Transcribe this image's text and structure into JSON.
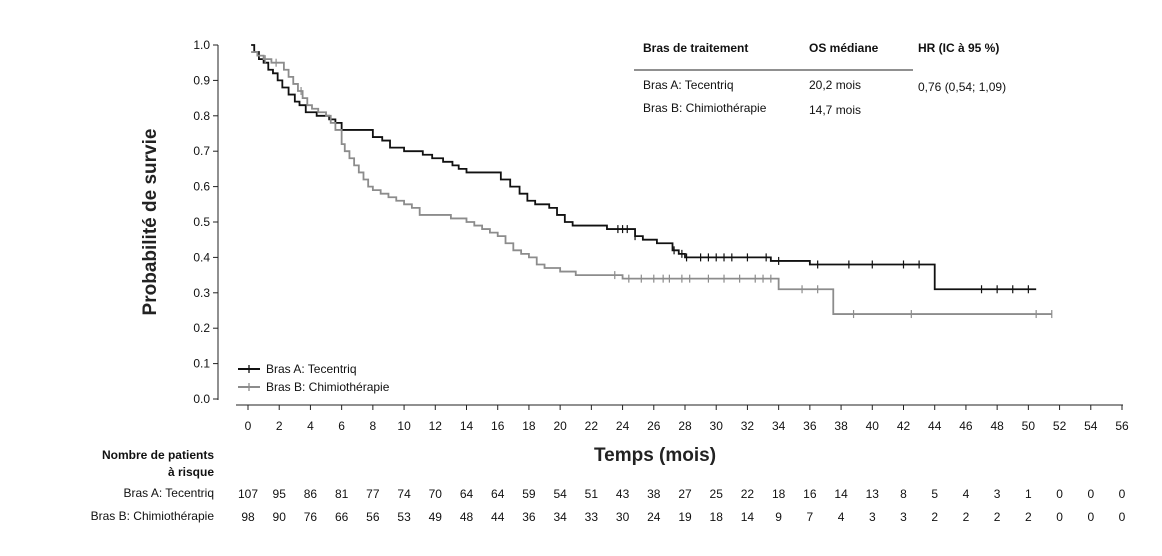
{
  "chart_data": {
    "type": "line",
    "title": "",
    "xlabel": "Temps (mois)",
    "ylabel": "Probabilité de survie",
    "xlim": [
      0,
      56
    ],
    "ylim": [
      0,
      1
    ],
    "x_ticks": [
      "0",
      "2",
      "4",
      "6",
      "8",
      "10",
      "12",
      "14",
      "16",
      "18",
      "20",
      "22",
      "24",
      "26",
      "28",
      "30",
      "32",
      "34",
      "36",
      "38",
      "40",
      "42",
      "44",
      "46",
      "48",
      "50",
      "52",
      "54",
      "56"
    ],
    "y_ticks": [
      "0.0",
      "0.1",
      "0.2",
      "0.3",
      "0.4",
      "0.5",
      "0.6",
      "0.7",
      "0.8",
      "0.9",
      "1.0"
    ],
    "legend": {
      "placement": "bottom-left"
    },
    "series": [
      {
        "name": "Bras A: Tecentriq",
        "color": "#111111",
        "x": [
          0.2,
          0.4,
          0.7,
          1.0,
          1.3,
          1.6,
          1.9,
          2.2,
          2.6,
          3.0,
          3.3,
          3.7,
          4.4,
          5.2,
          5.6,
          6.0,
          8.0,
          8.6,
          9.1,
          10.0,
          11.2,
          11.8,
          12.5,
          13.1,
          13.5,
          14.0,
          16.2,
          16.8,
          17.4,
          17.9,
          18.4,
          19.3,
          19.8,
          20.3,
          20.8,
          23.0,
          24.8,
          25.3,
          26.2,
          27.2,
          27.6,
          28.0,
          33.5,
          36.0,
          44.0,
          50.5
        ],
        "y": [
          1.0,
          0.98,
          0.96,
          0.95,
          0.93,
          0.92,
          0.9,
          0.88,
          0.86,
          0.84,
          0.83,
          0.81,
          0.8,
          0.79,
          0.78,
          0.76,
          0.74,
          0.73,
          0.71,
          0.7,
          0.69,
          0.68,
          0.67,
          0.66,
          0.65,
          0.64,
          0.62,
          0.6,
          0.58,
          0.56,
          0.55,
          0.54,
          0.52,
          0.5,
          0.49,
          0.48,
          0.46,
          0.45,
          0.44,
          0.42,
          0.41,
          0.4,
          0.39,
          0.38,
          0.31,
          0.31
        ],
        "censor_x": [
          23.7,
          24.0,
          24.3,
          24.8,
          27.3,
          27.8,
          28.1,
          29.0,
          29.5,
          30.0,
          30.5,
          31.0,
          32.0,
          33.2,
          34.0,
          36.5,
          38.5,
          40.0,
          42.0,
          43.0,
          47.0,
          48.0,
          49.0,
          50.0
        ]
      },
      {
        "name": "Bras B: Chimiothérapie",
        "color": "#8c8c8c",
        "x": [
          0.2,
          0.6,
          1.0,
          1.5,
          2.3,
          2.6,
          2.9,
          3.2,
          3.5,
          3.8,
          4.1,
          4.5,
          5.0,
          5.3,
          5.6,
          6.0,
          6.2,
          6.5,
          6.8,
          7.1,
          7.4,
          7.7,
          8.0,
          8.5,
          9.0,
          9.5,
          10.0,
          10.5,
          11.0,
          12.0,
          13.0,
          14.0,
          14.5,
          15.0,
          15.5,
          16.0,
          16.5,
          17.0,
          17.5,
          18.0,
          18.5,
          19.0,
          20.0,
          21.0,
          24.0,
          34.0,
          37.5,
          51.5
        ],
        "y": [
          0.98,
          0.97,
          0.96,
          0.95,
          0.93,
          0.91,
          0.89,
          0.87,
          0.85,
          0.83,
          0.82,
          0.81,
          0.8,
          0.78,
          0.76,
          0.72,
          0.7,
          0.68,
          0.66,
          0.64,
          0.62,
          0.6,
          0.59,
          0.58,
          0.57,
          0.56,
          0.55,
          0.54,
          0.52,
          0.52,
          0.51,
          0.5,
          0.49,
          0.48,
          0.47,
          0.46,
          0.44,
          0.42,
          0.41,
          0.4,
          0.38,
          0.37,
          0.36,
          0.35,
          0.34,
          0.31,
          0.24,
          0.24
        ],
        "censor_x": [
          1.1,
          1.8,
          3.4,
          23.5,
          24.4,
          25.2,
          26.0,
          26.6,
          27.0,
          27.8,
          28.3,
          29.5,
          30.5,
          31.5,
          32.5,
          33.0,
          33.5,
          35.5,
          36.5,
          38.8,
          42.5,
          50.5,
          51.5
        ]
      }
    ],
    "summary_table": {
      "headers": [
        "Bras de traitement",
        "OS médiane",
        "HR (IC à 95 %)"
      ],
      "rows": [
        [
          "Bras A: Tecentriq",
          "20,2 mois",
          "0,76 (0,54; 1,09)"
        ],
        [
          "Bras B: Chimiothérapie",
          "14,7 mois",
          ""
        ]
      ]
    },
    "risk_table": {
      "title_line1": "Nombre de patients",
      "title_line2": "à risque",
      "rows": [
        {
          "label": "Bras A: Tecentriq",
          "values": [
            "107",
            "95",
            "86",
            "81",
            "77",
            "74",
            "70",
            "64",
            "64",
            "59",
            "54",
            "51",
            "43",
            "38",
            "27",
            "25",
            "22",
            "18",
            "16",
            "14",
            "13",
            "8",
            "5",
            "4",
            "3",
            "1",
            "0",
            "0",
            "0"
          ]
        },
        {
          "label": "Bras B: Chimiothérapie",
          "values": [
            "98",
            "90",
            "76",
            "66",
            "56",
            "53",
            "49",
            "48",
            "44",
            "36",
            "34",
            "33",
            "30",
            "24",
            "19",
            "18",
            "14",
            "9",
            "7",
            "4",
            "3",
            "3",
            "2",
            "2",
            "2",
            "2",
            "0",
            "0",
            "0"
          ]
        }
      ]
    }
  }
}
